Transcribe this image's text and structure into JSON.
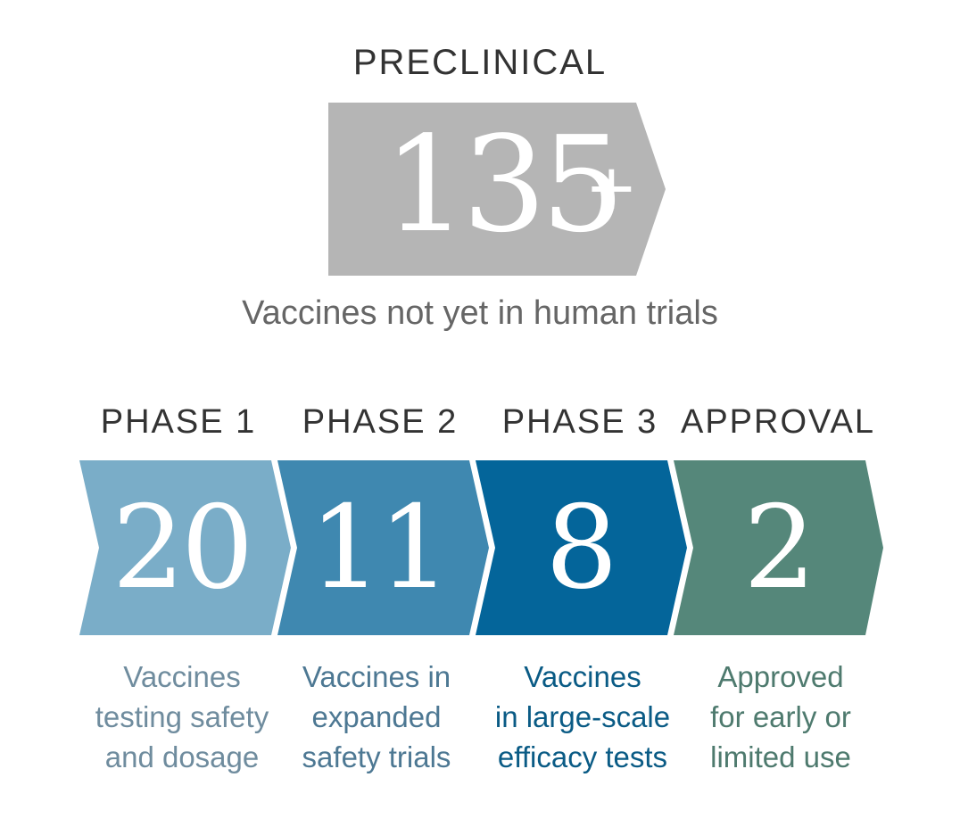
{
  "preclinical": {
    "label": "PRECLINICAL",
    "count": "135",
    "plus": "+",
    "description": "Vaccines not yet in human trials",
    "color": "#b5b5b5"
  },
  "stages": [
    {
      "label": "PHASE 1",
      "count": "20",
      "description": "Vaccines\ntesting safety\nand dosage",
      "color": "#7aadc8",
      "text_color": "#6f8c9e"
    },
    {
      "label": "PHASE 2",
      "count": "11",
      "description": "Vaccines in\nexpanded\nsafety trials",
      "color": "#3f88b0",
      "text_color": "#4d7893"
    },
    {
      "label": "PHASE 3",
      "count": "8",
      "description": "Vaccines\nin large-scale\nefficacy tests",
      "color": "#04659a",
      "text_color": "#0a5b85"
    },
    {
      "label": "APPROVAL",
      "count": "2",
      "description": "Approved\nfor early or\nlimited use",
      "color": "#55877a",
      "text_color": "#4e7a6e"
    }
  ]
}
